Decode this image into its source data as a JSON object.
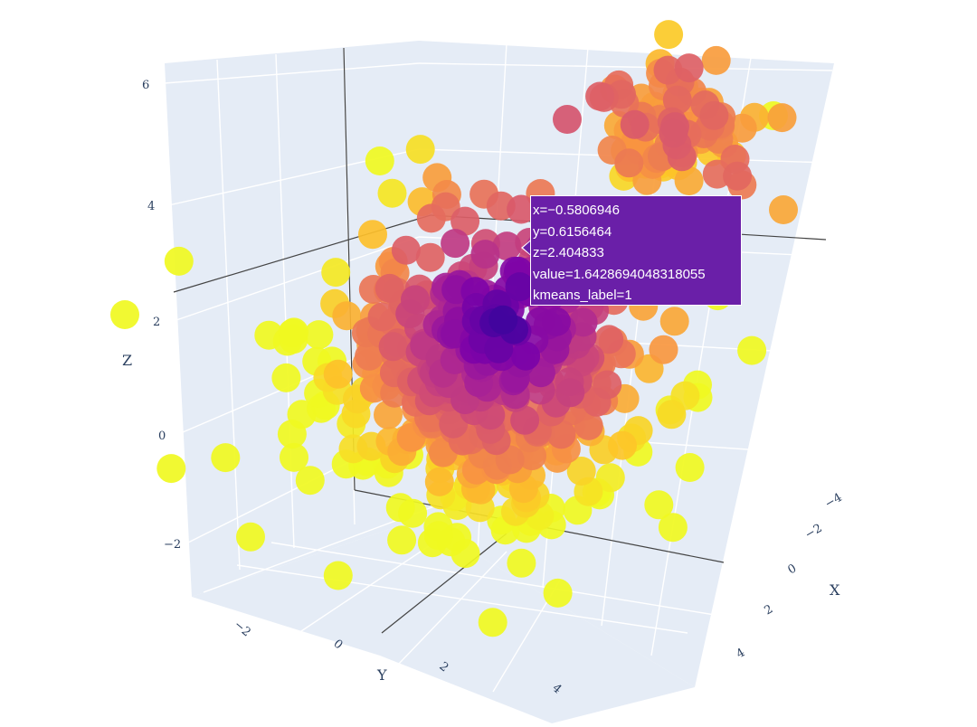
{
  "chart_data": {
    "type": "scatter3d",
    "title": "",
    "axes": {
      "x": {
        "title": "X",
        "ticks": [
          "−4",
          "−2",
          "0",
          "2",
          "4"
        ]
      },
      "y": {
        "title": "Y",
        "ticks": [
          "−2",
          "0",
          "2",
          "4"
        ]
      },
      "z": {
        "title": "Z",
        "ticks": [
          "6",
          "4",
          "2",
          "0",
          "−2"
        ]
      }
    },
    "colorscale": "plasma",
    "colors": {
      "background_plane": "#e5ecf6",
      "gridline": "#ffffff",
      "axis_line": "#444444",
      "tooltip_bg": "#6a1fa8"
    },
    "hover": {
      "lines": [
        "x=−0.5806946",
        "y=0.6156464",
        "z=2.404833",
        "value=1.6428694048318055",
        "kmeans_label=1"
      ]
    },
    "marker_count_estimate": 560
  }
}
